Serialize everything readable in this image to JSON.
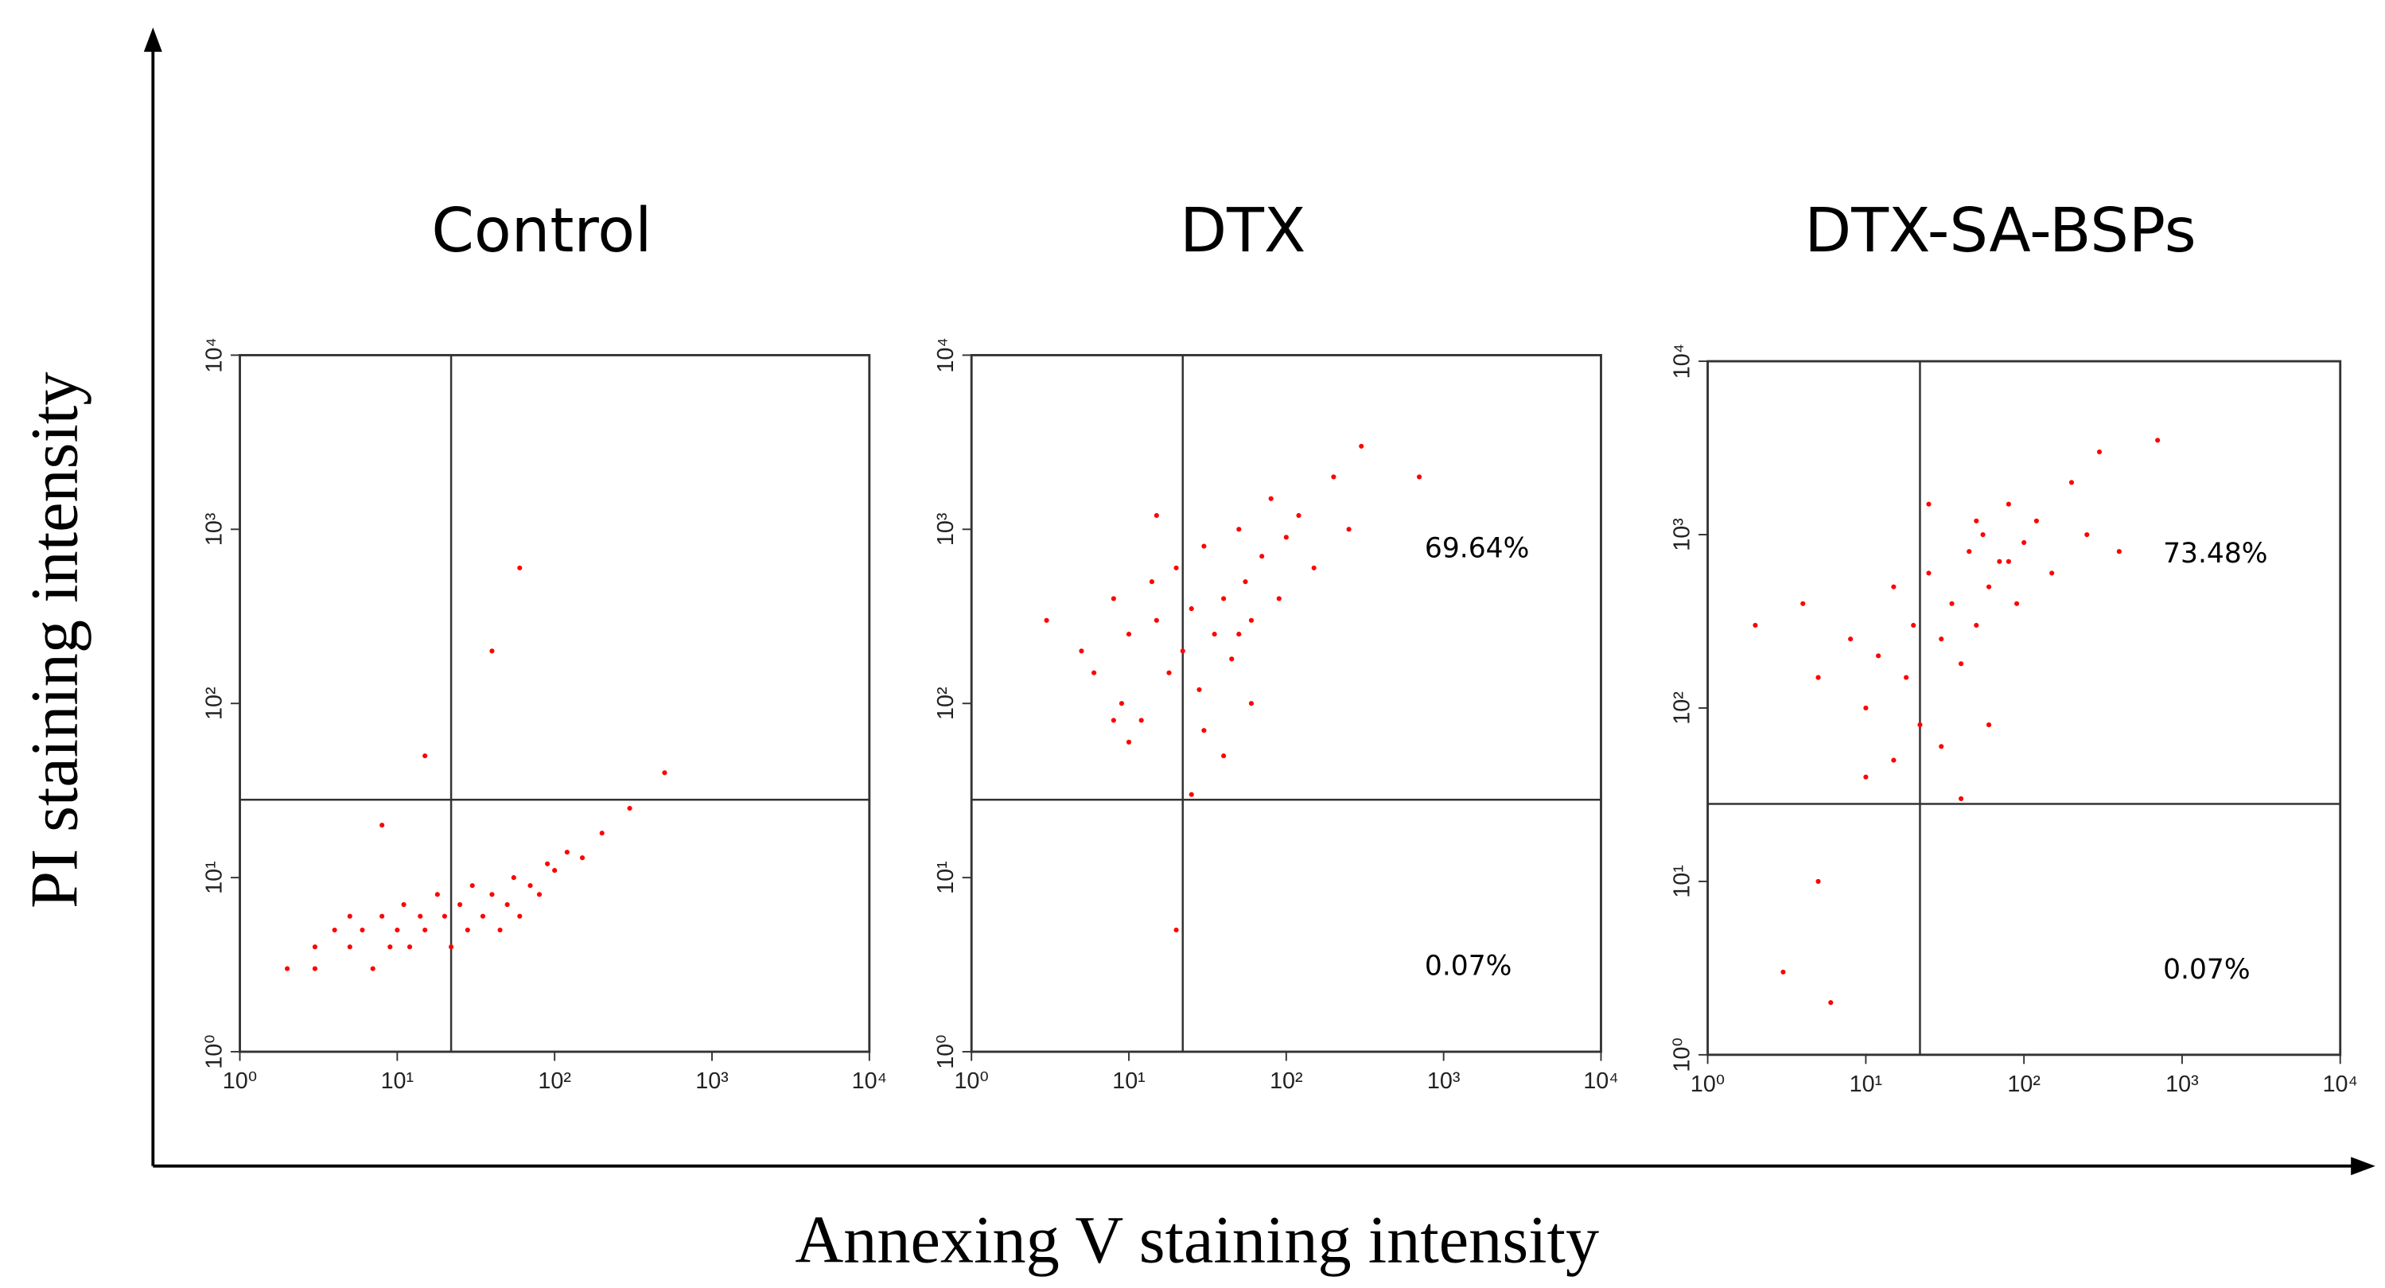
{
  "chart_data": [
    {
      "type": "scatter",
      "title": "Control",
      "color": "#ff0000",
      "xlog": true,
      "ylog": true,
      "xlim": [
        1,
        10000
      ],
      "ylim": [
        1,
        10000
      ],
      "xticks": [
        {
          "value": 1,
          "label": "10⁰"
        },
        {
          "value": 10,
          "label": "10¹"
        },
        {
          "value": 100,
          "label": "10²"
        },
        {
          "value": 1000,
          "label": "10³"
        },
        {
          "value": 10000,
          "label": "10⁴"
        }
      ],
      "yticks": [
        {
          "value": 1,
          "label": "10⁰"
        },
        {
          "value": 10,
          "label": "10¹"
        },
        {
          "value": 100,
          "label": "10²"
        },
        {
          "value": 1000,
          "label": "10³"
        },
        {
          "value": 10000,
          "label": "10⁴"
        }
      ],
      "quadrant": {
        "x": 22,
        "y": 28
      },
      "x": [
        2,
        3,
        3,
        4,
        5,
        5,
        6,
        7,
        8,
        9,
        10,
        11,
        12,
        14,
        15,
        18,
        20,
        22,
        25,
        28,
        30,
        35,
        40,
        45,
        50,
        55,
        60,
        70,
        80,
        90,
        100,
        120,
        150,
        200,
        300,
        500,
        15,
        40,
        8,
        60
      ],
      "y": [
        3,
        4,
        3,
        5,
        4,
        6,
        5,
        3,
        6,
        4,
        5,
        7,
        4,
        6,
        5,
        8,
        6,
        4,
        7,
        5,
        9,
        6,
        8,
        5,
        7,
        10,
        6,
        9,
        8,
        12,
        11,
        14,
        13,
        18,
        25,
        40,
        50,
        200,
        20,
        600
      ]
    },
    {
      "type": "scatter",
      "title": "DTX",
      "color": "#ff0000",
      "xlog": true,
      "ylog": true,
      "xlim": [
        1,
        10000
      ],
      "ylim": [
        1,
        10000
      ],
      "xticks": [
        {
          "value": 1,
          "label": "10⁰"
        },
        {
          "value": 10,
          "label": "10¹"
        },
        {
          "value": 100,
          "label": "10²"
        },
        {
          "value": 1000,
          "label": "10³"
        },
        {
          "value": 10000,
          "label": "10⁴"
        }
      ],
      "yticks": [
        {
          "value": 1,
          "label": "10⁰"
        },
        {
          "value": 10,
          "label": "10¹"
        },
        {
          "value": 100,
          "label": "10²"
        },
        {
          "value": 1000,
          "label": "10³"
        },
        {
          "value": 10000,
          "label": "10⁴"
        }
      ],
      "quadrant": {
        "x": 22,
        "y": 28
      },
      "annotations": {
        "upper_right": "69.64%",
        "lower_right": "0.07%"
      },
      "x": [
        3,
        5,
        6,
        8,
        9,
        10,
        12,
        14,
        15,
        18,
        20,
        22,
        25,
        28,
        30,
        35,
        40,
        45,
        50,
        55,
        60,
        70,
        80,
        90,
        100,
        120,
        150,
        200,
        250,
        300,
        10,
        30,
        60,
        15,
        40,
        25,
        700,
        20,
        8,
        50
      ],
      "y": [
        300,
        200,
        150,
        400,
        100,
        250,
        80,
        500,
        300,
        150,
        600,
        200,
        350,
        120,
        800,
        250,
        400,
        180,
        1000,
        500,
        300,
        700,
        1500,
        400,
        900,
        1200,
        600,
        2000,
        1000,
        3000,
        60,
        70,
        100,
        1200,
        50,
        30,
        2000,
        5,
        80,
        250
      ]
    },
    {
      "type": "scatter",
      "title": "DTX-SA-BSPs",
      "color": "#ff0000",
      "xlog": true,
      "ylog": true,
      "xlim": [
        1,
        10000
      ],
      "ylim": [
        1,
        10000
      ],
      "xticks": [
        {
          "value": 1,
          "label": "10⁰"
        },
        {
          "value": 10,
          "label": "10¹"
        },
        {
          "value": 100,
          "label": "10²"
        },
        {
          "value": 1000,
          "label": "10³"
        },
        {
          "value": 10000,
          "label": "10⁴"
        }
      ],
      "yticks": [
        {
          "value": 1,
          "label": "10⁰"
        },
        {
          "value": 10,
          "label": "10¹"
        },
        {
          "value": 100,
          "label": "10²"
        },
        {
          "value": 1000,
          "label": "10³"
        },
        {
          "value": 10000,
          "label": "10⁴"
        }
      ],
      "quadrant": {
        "x": 22,
        "y": 28
      },
      "annotations": {
        "upper_right": "73.48%",
        "lower_right": "0.07%"
      },
      "x": [
        2,
        4,
        5,
        8,
        10,
        12,
        15,
        18,
        20,
        22,
        25,
        30,
        35,
        40,
        45,
        50,
        55,
        60,
        70,
        80,
        90,
        100,
        120,
        150,
        200,
        250,
        300,
        400,
        30,
        60,
        15,
        40,
        25,
        700,
        3,
        5,
        6,
        10,
        50,
        80
      ],
      "y": [
        300,
        400,
        150,
        250,
        100,
        200,
        500,
        150,
        300,
        80,
        600,
        250,
        400,
        180,
        800,
        300,
        1000,
        500,
        700,
        1500,
        400,
        900,
        1200,
        600,
        2000,
        1000,
        3000,
        800,
        60,
        80,
        50,
        30,
        1500,
        3500,
        3,
        10,
        2,
        40,
        1200,
        700
      ]
    }
  ],
  "xlabel": "Annexing V staining intensity",
  "ylabel": "PI staining intensity"
}
